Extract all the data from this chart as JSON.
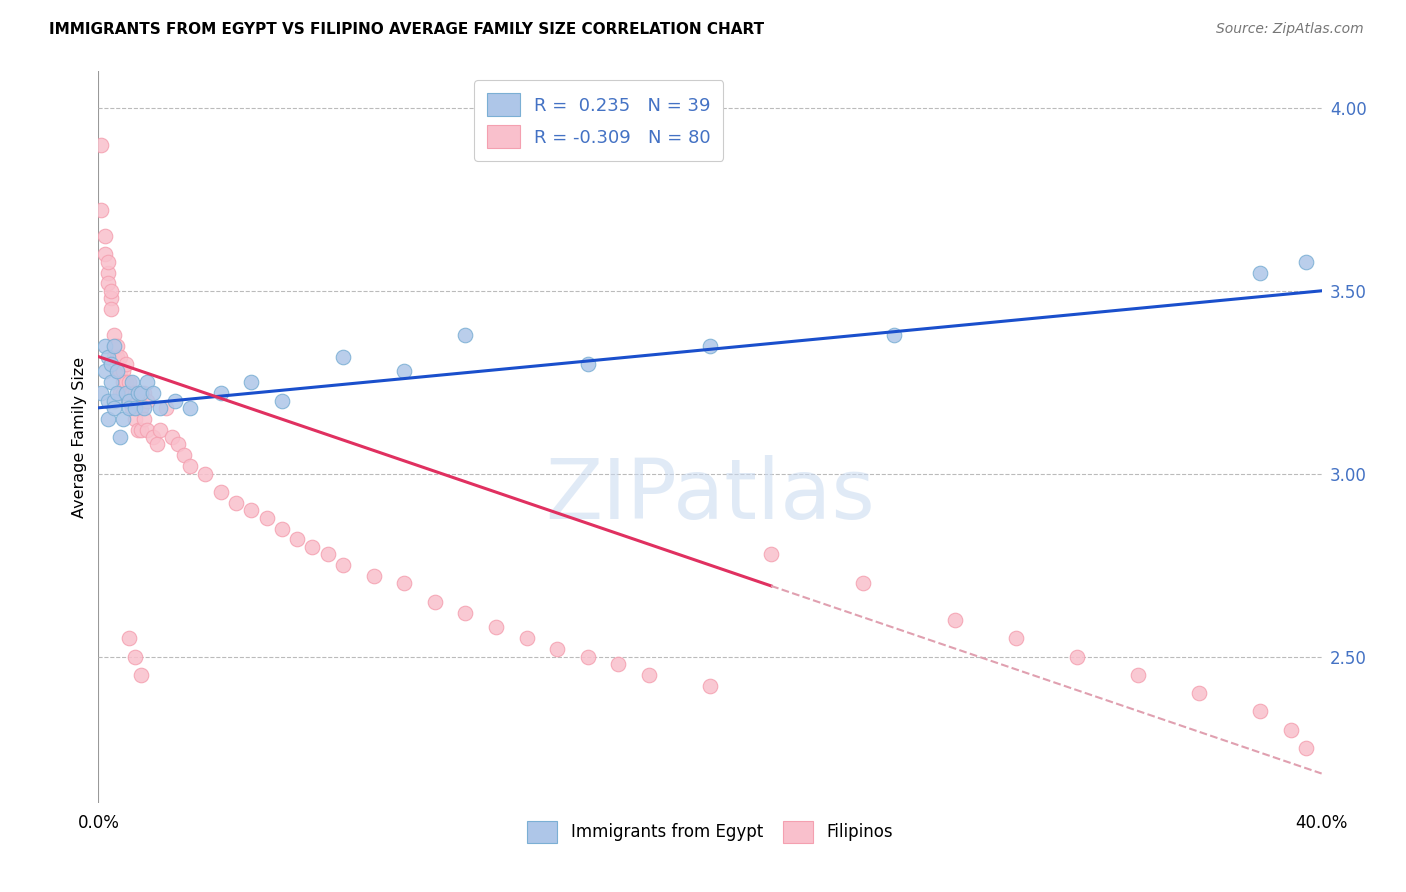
{
  "title": "IMMIGRANTS FROM EGYPT VS FILIPINO AVERAGE FAMILY SIZE CORRELATION CHART",
  "source": "Source: ZipAtlas.com",
  "ylabel": "Average Family Size",
  "yticks": [
    2.5,
    3.0,
    3.5,
    4.0
  ],
  "xlim": [
    0.0,
    0.4
  ],
  "ylim": [
    2.1,
    4.1
  ],
  "legend1_label": "R =  0.235   N = 39",
  "legend2_label": "R = -0.309   N = 80",
  "watermark": "ZIPatlas",
  "egypt_scatter_color": "#aec6e8",
  "egypt_edge_color": "#7bafd4",
  "filipino_scatter_color": "#f9c0cc",
  "filipino_edge_color": "#f4a0b0",
  "egypt_line_color": "#1a4fcc",
  "filipino_line_color": "#e03060",
  "filipino_dash_color": "#e0a0b0",
  "egypt_x": [
    0.001,
    0.002,
    0.002,
    0.003,
    0.003,
    0.003,
    0.004,
    0.004,
    0.005,
    0.005,
    0.005,
    0.006,
    0.006,
    0.007,
    0.008,
    0.009,
    0.01,
    0.01,
    0.011,
    0.012,
    0.013,
    0.014,
    0.015,
    0.016,
    0.018,
    0.02,
    0.025,
    0.03,
    0.04,
    0.05,
    0.06,
    0.08,
    0.1,
    0.12,
    0.16,
    0.2,
    0.26,
    0.38,
    0.395
  ],
  "egypt_y": [
    3.22,
    3.28,
    3.35,
    3.2,
    3.15,
    3.32,
    3.3,
    3.25,
    3.2,
    3.18,
    3.35,
    3.22,
    3.28,
    3.1,
    3.15,
    3.22,
    3.2,
    3.18,
    3.25,
    3.18,
    3.22,
    3.22,
    3.18,
    3.25,
    3.22,
    3.18,
    3.2,
    3.18,
    3.22,
    3.25,
    3.2,
    3.32,
    3.28,
    3.38,
    3.3,
    3.35,
    3.38,
    3.55,
    3.58
  ],
  "filipino_x": [
    0.001,
    0.001,
    0.002,
    0.002,
    0.003,
    0.003,
    0.003,
    0.004,
    0.004,
    0.004,
    0.005,
    0.005,
    0.005,
    0.006,
    0.006,
    0.006,
    0.007,
    0.007,
    0.007,
    0.008,
    0.008,
    0.008,
    0.009,
    0.009,
    0.01,
    0.01,
    0.011,
    0.011,
    0.012,
    0.012,
    0.013,
    0.013,
    0.014,
    0.014,
    0.015,
    0.015,
    0.016,
    0.016,
    0.018,
    0.019,
    0.02,
    0.022,
    0.024,
    0.026,
    0.028,
    0.03,
    0.035,
    0.04,
    0.045,
    0.05,
    0.055,
    0.06,
    0.065,
    0.07,
    0.075,
    0.08,
    0.09,
    0.1,
    0.11,
    0.12,
    0.13,
    0.14,
    0.15,
    0.16,
    0.17,
    0.18,
    0.2,
    0.22,
    0.25,
    0.28,
    0.3,
    0.32,
    0.34,
    0.36,
    0.38,
    0.39,
    0.395,
    0.01,
    0.012,
    0.014
  ],
  "filipino_y": [
    3.9,
    3.72,
    3.65,
    3.6,
    3.55,
    3.58,
    3.52,
    3.48,
    3.5,
    3.45,
    3.35,
    3.38,
    3.32,
    3.32,
    3.35,
    3.28,
    3.32,
    3.28,
    3.22,
    3.28,
    3.25,
    3.22,
    3.3,
    3.25,
    3.25,
    3.2,
    3.22,
    3.18,
    3.22,
    3.15,
    3.2,
    3.12,
    3.18,
    3.12,
    3.22,
    3.15,
    3.2,
    3.12,
    3.1,
    3.08,
    3.12,
    3.18,
    3.1,
    3.08,
    3.05,
    3.02,
    3.0,
    2.95,
    2.92,
    2.9,
    2.88,
    2.85,
    2.82,
    2.8,
    2.78,
    2.75,
    2.72,
    2.7,
    2.65,
    2.62,
    2.58,
    2.55,
    2.52,
    2.5,
    2.48,
    2.45,
    2.42,
    2.78,
    2.7,
    2.6,
    2.55,
    2.5,
    2.45,
    2.4,
    2.35,
    2.3,
    2.25,
    2.55,
    2.5,
    2.45
  ],
  "egypt_line_x0": 0.0,
  "egypt_line_x1": 0.4,
  "egypt_line_y0": 3.18,
  "egypt_line_y1": 3.5,
  "filipino_line_x0": 0.0,
  "filipino_line_x1": 0.4,
  "filipino_line_y0": 3.32,
  "filipino_line_y1": 2.18,
  "filipino_solid_cutoff": 0.22
}
